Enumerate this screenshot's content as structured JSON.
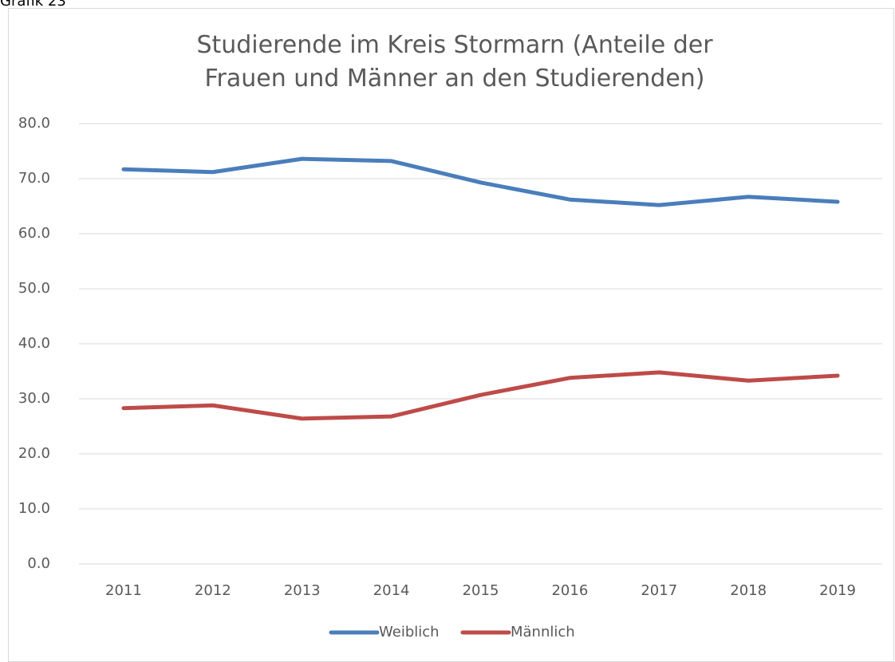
{
  "caption": "Grafik 23",
  "chart_data": {
    "type": "line",
    "title": "Studierende im Kreis Stormarn (Anteile der Frauen und Männer an den Studierenden)",
    "categories": [
      "2011",
      "2012",
      "2013",
      "2014",
      "2015",
      "2016",
      "2017",
      "2018",
      "2019"
    ],
    "series": [
      {
        "name": "Weiblich",
        "color": "#4a7ebb",
        "values": [
          71.7,
          71.2,
          73.6,
          73.2,
          69.3,
          66.2,
          65.2,
          66.7,
          65.8
        ]
      },
      {
        "name": "Männlich",
        "color": "#be4b48",
        "values": [
          28.3,
          28.8,
          26.4,
          26.8,
          30.7,
          33.8,
          34.8,
          33.3,
          34.2
        ]
      }
    ],
    "ylim": [
      0,
      80
    ],
    "yticks": [
      {
        "value": 0,
        "label": "0.0"
      },
      {
        "value": 10,
        "label": "10.0"
      },
      {
        "value": 20,
        "label": "20.0"
      },
      {
        "value": 30,
        "label": "30.0"
      },
      {
        "value": 40,
        "label": "40.0"
      },
      {
        "value": 50,
        "label": "50.0"
      },
      {
        "value": 60,
        "label": "60.0"
      },
      {
        "value": 70,
        "label": "70.0"
      },
      {
        "value": 80,
        "label": "80.0"
      }
    ],
    "grid": true,
    "legend": "bottom"
  }
}
